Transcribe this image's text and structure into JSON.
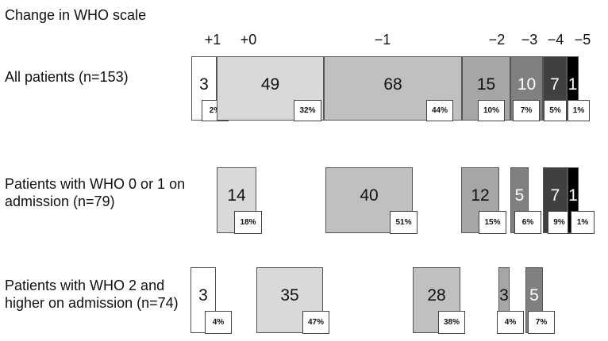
{
  "chart_data": {
    "type": "bar",
    "title": "",
    "xlabel": "Change in WHO scale",
    "categories": [
      "+1",
      "+0",
      "−1",
      "−2",
      "−3",
      "−4",
      "−5"
    ],
    "colors": [
      "#ffffff",
      "#d9d9d9",
      "#c0c0c0",
      "#a6a6a6",
      "#808080",
      "#404040",
      "#000000"
    ],
    "rows": [
      {
        "label": "All patients (n=153)",
        "values": [
          3,
          49,
          68,
          15,
          10,
          7,
          1
        ],
        "percents": [
          "2%",
          "32%",
          "44%",
          "10%",
          "7%",
          "5%",
          "1%"
        ]
      },
      {
        "label": "Patients with WHO 0 or  1 on admission (n=79)",
        "values": [
          null,
          14,
          40,
          12,
          5,
          7,
          1
        ],
        "percents": [
          null,
          "18%",
          "51%",
          "15%",
          "6%",
          "9%",
          "1%"
        ]
      },
      {
        "label": "Patients with WHO 2 and higher on admission (n=74)",
        "values": [
          3,
          35,
          28,
          3,
          5,
          null,
          null
        ],
        "percents": [
          "4%",
          "47%",
          "38%",
          "4%",
          "7%",
          null,
          null
        ]
      }
    ]
  }
}
